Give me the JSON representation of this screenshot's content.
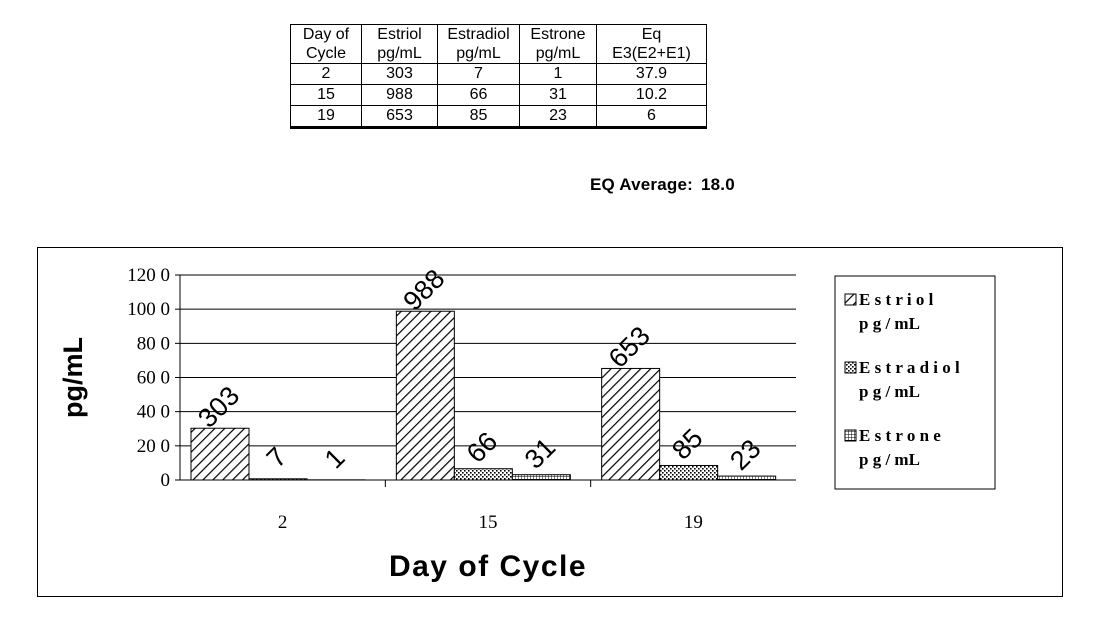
{
  "table": {
    "headers": [
      [
        "Day of",
        "Cycle"
      ],
      [
        "Estriol",
        "pg/mL"
      ],
      [
        "Estradiol",
        "pg/mL"
      ],
      [
        "Estrone",
        "pg/mL"
      ],
      [
        "Eq",
        "E3(E2+E1)"
      ]
    ],
    "rows": [
      [
        "2",
        "303",
        "7",
        "1",
        "37.9"
      ],
      [
        "15",
        "988",
        "66",
        "31",
        "10.2"
      ],
      [
        "19",
        "653",
        "85",
        "23",
        "6"
      ]
    ]
  },
  "eq_average": {
    "label": "EQ Average:",
    "value": "18.0"
  },
  "chart_data": {
    "type": "bar",
    "categories": [
      "2",
      "15",
      "19"
    ],
    "series": [
      {
        "name": "Estriol pg/mL",
        "values": [
          303,
          988,
          653
        ],
        "pattern": "diagonal-hatch"
      },
      {
        "name": "Estradiol pg/mL",
        "values": [
          7,
          66,
          85
        ],
        "pattern": "dots"
      },
      {
        "name": "Estrone pg/mL",
        "values": [
          1,
          31,
          23
        ],
        "pattern": "grid"
      }
    ],
    "xlabel": "Day of Cycle",
    "ylabel": "pg/mL",
    "ylim": [
      0,
      1200
    ],
    "yticks": [
      0,
      200,
      400,
      600,
      800,
      1000,
      1200
    ],
    "ytick_labels": [
      "0",
      "20 0",
      "40 0",
      "60 0",
      "80 0",
      "100 0",
      "120 0"
    ],
    "grid": true,
    "legend": "right",
    "legend_lines": [
      [
        "E s t r i o l",
        "p g / mL"
      ],
      [
        "E s t r a d i o l",
        "p g / mL"
      ],
      [
        "E s t r o n e",
        "p g / mL"
      ]
    ],
    "data_labels": [
      "303",
      "7",
      "1",
      "988",
      "66",
      "31",
      "653",
      "85",
      "23"
    ]
  }
}
